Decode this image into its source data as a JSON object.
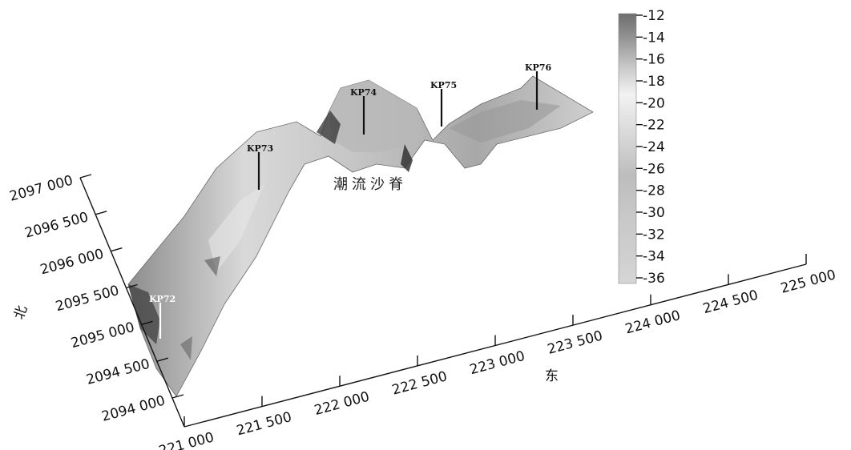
{
  "chart_data": {
    "type": "surface-3d",
    "x_axis": {
      "label": "东",
      "ticks": [
        "221 000",
        "221 500",
        "222 000",
        "222 500",
        "223 000",
        "223 500",
        "224 000",
        "224 500",
        "225 000"
      ],
      "range": [
        221000,
        225000
      ]
    },
    "y_axis": {
      "label": "北",
      "ticks": [
        "2094 000",
        "2094 500",
        "2095 000",
        "2095 500",
        "2096 000",
        "2096 500",
        "2097 000"
      ],
      "range": [
        2094000,
        2097000
      ]
    },
    "colorbar": {
      "ticks": [
        "-12",
        "-14",
        "-16",
        "-18",
        "-20",
        "-22",
        "-24",
        "-26",
        "-28",
        "-30",
        "-32",
        "-34",
        "-36"
      ],
      "range": [
        -36,
        -12
      ]
    },
    "markers": [
      {
        "label": "KP72",
        "color": "#ffffff"
      },
      {
        "label": "KP73",
        "color": "#111111"
      },
      {
        "label": "KP74",
        "color": "#111111"
      },
      {
        "label": "KP75",
        "color": "#111111"
      },
      {
        "label": "KP76",
        "color": "#111111"
      }
    ],
    "annotation": "潮流沙脊"
  }
}
